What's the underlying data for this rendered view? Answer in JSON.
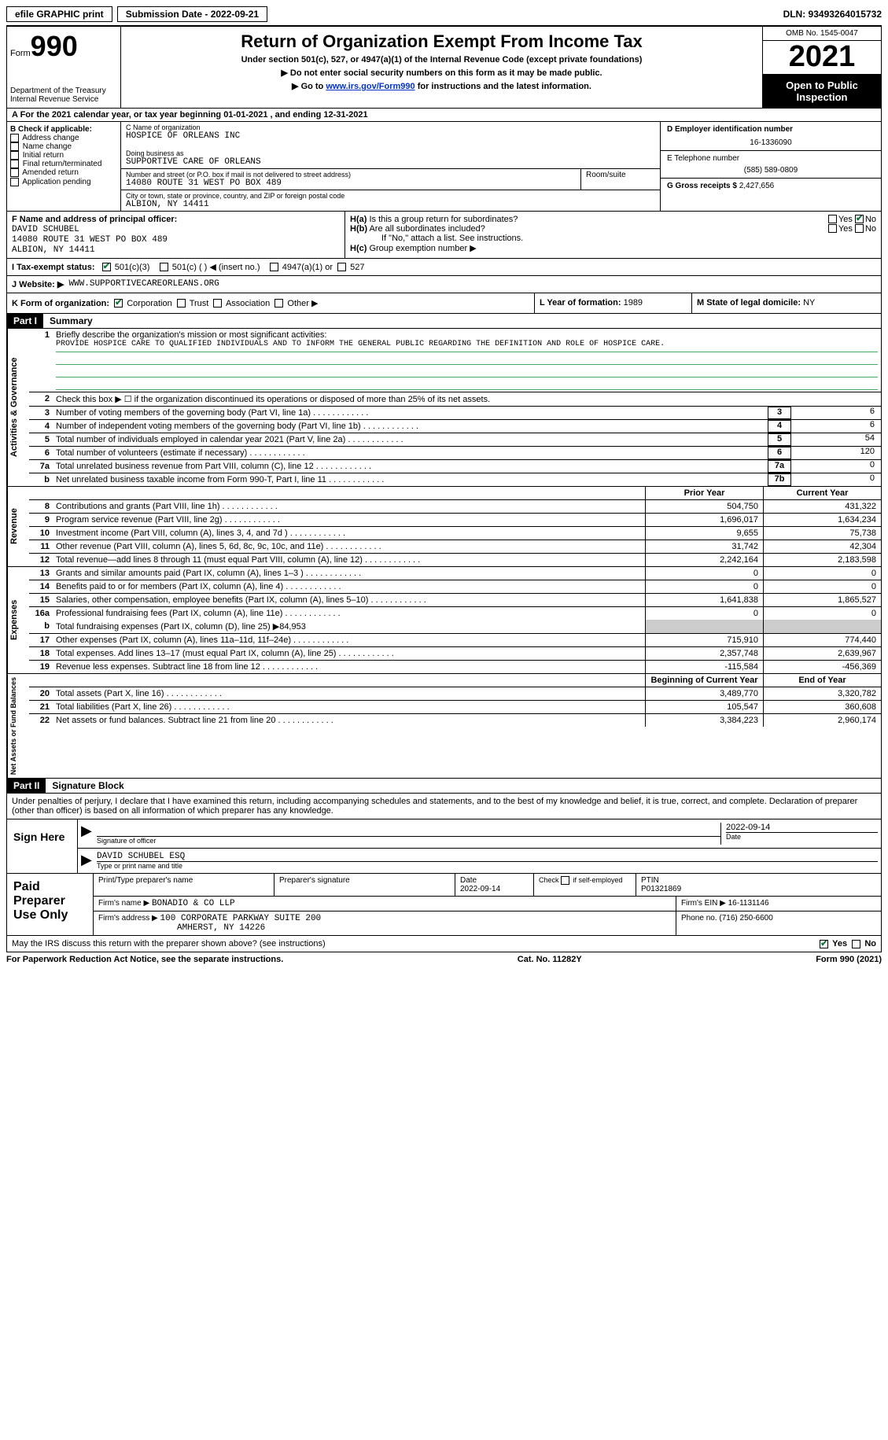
{
  "topbar": {
    "efile_label": "efile GRAPHIC print",
    "submission_label": "Submission Date - 2022-09-21",
    "dln_label": "DLN: 93493264015732"
  },
  "header": {
    "form_label": "Form",
    "form_num": "990",
    "dept": "Department of the Treasury Internal Revenue Service",
    "title": "Return of Organization Exempt From Income Tax",
    "subtitle": "Under section 501(c), 527, or 4947(a)(1) of the Internal Revenue Code (except private foundations)",
    "note1": "▶ Do not enter social security numbers on this form as it may be made public.",
    "note2_pre": "▶ Go to ",
    "note2_link": "www.irs.gov/Form990",
    "note2_post": " for instructions and the latest information.",
    "omb": "OMB No. 1545-0047",
    "year": "2021",
    "open_pub": "Open to Public Inspection"
  },
  "row_a": "A For the 2021 calendar year, or tax year beginning 01-01-2021    , and ending 12-31-2021",
  "col_b": {
    "header": "B Check if applicable:",
    "items": [
      "Address change",
      "Name change",
      "Initial return",
      "Final return/terminated",
      "Amended return",
      "Application pending"
    ]
  },
  "col_c": {
    "name_label": "C Name of organization",
    "name": "HOSPICE OF ORLEANS INC",
    "dba_label": "Doing business as",
    "dba": "SUPPORTIVE CARE OF ORLEANS",
    "street_label": "Number and street (or P.O. box if mail is not delivered to street address)",
    "street": "14080 ROUTE 31 WEST PO BOX 489",
    "room_label": "Room/suite",
    "city_label": "City or town, state or province, country, and ZIP or foreign postal code",
    "city": "ALBION, NY   14411"
  },
  "col_d": {
    "ein_label": "D Employer identification number",
    "ein": "16-1336090",
    "phone_label": "E Telephone number",
    "phone": "(585) 589-0809",
    "gross_label": "G Gross receipts $",
    "gross": "2,427,656"
  },
  "f": {
    "label": "F Name and address of principal officer:",
    "name": "DAVID SCHUBEL",
    "addr1": "14080 ROUTE 31 WEST PO BOX 489",
    "addr2": "ALBION, NY   14411"
  },
  "h": {
    "a_label": "H(a)  Is this a group return for subordinates?",
    "b_label": "H(b)  Are all subordinates included?",
    "b_note": "If \"No,\" attach a list. See instructions.",
    "c_label": "H(c)  Group exemption number ▶",
    "yes": "Yes",
    "no": "No"
  },
  "i": {
    "label": "I   Tax-exempt status:",
    "opts": [
      "501(c)(3)",
      "501(c) (   ) ◀ (insert no.)",
      "4947(a)(1) or",
      "527"
    ]
  },
  "j": {
    "label": "J   Website: ▶",
    "url": "WWW.SUPPORTIVECAREORLEANS.ORG"
  },
  "k": {
    "label": "K Form of organization:",
    "opts": [
      "Corporation",
      "Trust",
      "Association",
      "Other ▶"
    ]
  },
  "l": {
    "label": "L Year of formation:",
    "val": "1989"
  },
  "m": {
    "label": "M State of legal domicile:",
    "val": "NY"
  },
  "part1": {
    "num": "Part I",
    "title": "Summary"
  },
  "summary": {
    "activities_label": "Activities & Governance",
    "revenue_label": "Revenue",
    "expenses_label": "Expenses",
    "netassets_label": "Net Assets or Fund Balances",
    "line1_label": "Briefly describe the organization's mission or most significant activities:",
    "line1_text": "PROVIDE HOSPICE CARE TO QUALIFIED INDIVIDUALS AND TO INFORM THE GENERAL PUBLIC REGARDING THE DEFINITION AND ROLE OF HOSPICE CARE.",
    "line2_label": "Check this box ▶ ☐ if the organization discontinued its operations or disposed of more than 25% of its net assets.",
    "lines_37": [
      {
        "n": "3",
        "t": "Number of voting members of the governing body (Part VI, line 1a)",
        "v": "6"
      },
      {
        "n": "4",
        "t": "Number of independent voting members of the governing body (Part VI, line 1b)",
        "v": "6"
      },
      {
        "n": "5",
        "t": "Total number of individuals employed in calendar year 2021 (Part V, line 2a)",
        "v": "54"
      },
      {
        "n": "6",
        "t": "Total number of volunteers (estimate if necessary)",
        "v": "120"
      },
      {
        "n": "7a",
        "t": "Total unrelated business revenue from Part VIII, column (C), line 12",
        "v": "0"
      },
      {
        "n": "b",
        "t": "Net unrelated business taxable income from Form 990-T, Part I, line 11",
        "box": "7b",
        "v": "0"
      }
    ],
    "prior_label": "Prior Year",
    "current_label": "Current Year",
    "revenue_lines": [
      {
        "n": "8",
        "t": "Contributions and grants (Part VIII, line 1h)",
        "p": "504,750",
        "c": "431,322"
      },
      {
        "n": "9",
        "t": "Program service revenue (Part VIII, line 2g)",
        "p": "1,696,017",
        "c": "1,634,234"
      },
      {
        "n": "10",
        "t": "Investment income (Part VIII, column (A), lines 3, 4, and 7d )",
        "p": "9,655",
        "c": "75,738"
      },
      {
        "n": "11",
        "t": "Other revenue (Part VIII, column (A), lines 5, 6d, 8c, 9c, 10c, and 11e)",
        "p": "31,742",
        "c": "42,304"
      },
      {
        "n": "12",
        "t": "Total revenue—add lines 8 through 11 (must equal Part VIII, column (A), line 12)",
        "p": "2,242,164",
        "c": "2,183,598"
      }
    ],
    "expense_lines": [
      {
        "n": "13",
        "t": "Grants and similar amounts paid (Part IX, column (A), lines 1–3 )",
        "p": "0",
        "c": "0"
      },
      {
        "n": "14",
        "t": "Benefits paid to or for members (Part IX, column (A), line 4)",
        "p": "0",
        "c": "0"
      },
      {
        "n": "15",
        "t": "Salaries, other compensation, employee benefits (Part IX, column (A), lines 5–10)",
        "p": "1,641,838",
        "c": "1,865,527"
      },
      {
        "n": "16a",
        "t": "Professional fundraising fees (Part IX, column (A), line 11e)",
        "p": "0",
        "c": "0"
      }
    ],
    "line16b": "Total fundraising expenses (Part IX, column (D), line 25) ▶84,953",
    "expense_lines2": [
      {
        "n": "17",
        "t": "Other expenses (Part IX, column (A), lines 11a–11d, 11f–24e)",
        "p": "715,910",
        "c": "774,440"
      },
      {
        "n": "18",
        "t": "Total expenses. Add lines 13–17 (must equal Part IX, column (A), line 25)",
        "p": "2,357,748",
        "c": "2,639,967"
      },
      {
        "n": "19",
        "t": "Revenue less expenses. Subtract line 18 from line 12",
        "p": "-115,584",
        "c": "-456,369"
      }
    ],
    "begin_label": "Beginning of Current Year",
    "end_label": "End of Year",
    "net_lines": [
      {
        "n": "20",
        "t": "Total assets (Part X, line 16)",
        "p": "3,489,770",
        "c": "3,320,782"
      },
      {
        "n": "21",
        "t": "Total liabilities (Part X, line 26)",
        "p": "105,547",
        "c": "360,608"
      },
      {
        "n": "22",
        "t": "Net assets or fund balances. Subtract line 21 from line 20",
        "p": "3,384,223",
        "c": "2,960,174"
      }
    ]
  },
  "part2": {
    "num": "Part II",
    "title": "Signature Block"
  },
  "sig": {
    "penalties": "Under penalties of perjury, I declare that I have examined this return, including accompanying schedules and statements, and to the best of my knowledge and belief, it is true, correct, and complete. Declaration of preparer (other than officer) is based on all information of which preparer has any knowledge.",
    "sign_here": "Sign Here",
    "sig_officer": "Signature of officer",
    "date": "Date",
    "date_val": "2022-09-14",
    "name": "DAVID SCHUBEL ESQ",
    "type_name": "Type or print name and title"
  },
  "prep": {
    "title": "Paid Preparer Use Only",
    "print_name": "Print/Type preparer's name",
    "prep_sig": "Preparer's signature",
    "date_label": "Date",
    "date_val": "2022-09-14",
    "check_label": "Check ☐ if self-employed",
    "ptin_label": "PTIN",
    "ptin": "P01321869",
    "firm_name_label": "Firm's name     ▶",
    "firm_name": "BONADIO & CO LLP",
    "firm_ein_label": "Firm's EIN ▶",
    "firm_ein": "16-1131146",
    "firm_addr_label": "Firm's address ▶",
    "firm_addr1": "100 CORPORATE PARKWAY SUITE 200",
    "firm_addr2": "AMHERST, NY   14226",
    "phone_label": "Phone no.",
    "phone": "(716) 250-6600"
  },
  "footer": {
    "discuss": "May the IRS discuss this return with the preparer shown above? (see instructions)",
    "yes": "Yes",
    "no": "No",
    "paperwork": "For Paperwork Reduction Act Notice, see the separate instructions.",
    "cat": "Cat. No. 11282Y",
    "form": "Form 990 (2021)"
  }
}
